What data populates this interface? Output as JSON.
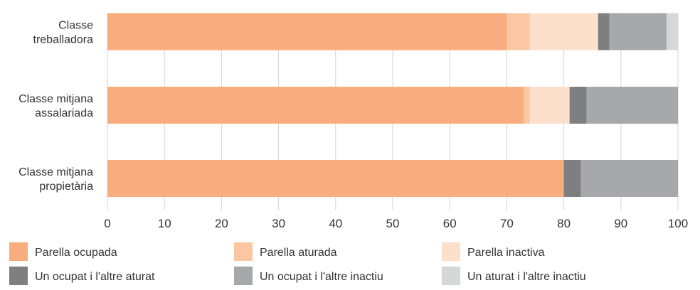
{
  "chart_data": {
    "type": "bar",
    "orientation": "horizontal",
    "stacked": true,
    "categories": [
      [
        "Classe",
        "treballadora"
      ],
      [
        "Classe mitjana",
        "assalariada"
      ],
      [
        "Classe mitjana",
        "propietària"
      ]
    ],
    "series": [
      {
        "name": "Parella ocupada",
        "color": "#f8ad7e",
        "values": [
          70,
          73,
          80
        ]
      },
      {
        "name": "Parella aturada",
        "color": "#fbc7a3",
        "values": [
          4,
          1,
          0
        ]
      },
      {
        "name": "Parella inactiva",
        "color": "#fde0cc",
        "values": [
          12,
          7,
          0
        ]
      },
      {
        "name": "Un ocupat i l'altre aturat",
        "color": "#7f7f82",
        "values": [
          2,
          3,
          3
        ]
      },
      {
        "name": "Un ocupat i l'altre inactiu",
        "color": "#a7a8ab",
        "values": [
          10,
          16,
          17
        ]
      },
      {
        "name": "Un aturat i l'altre inactiu",
        "color": "#d6d7d8",
        "values": [
          2,
          0,
          0
        ]
      }
    ],
    "xlim": [
      0,
      100
    ],
    "xticks": [
      0,
      10,
      20,
      30,
      40,
      50,
      60,
      70,
      80,
      90,
      100
    ],
    "grid": true,
    "legend_position": "bottom"
  }
}
